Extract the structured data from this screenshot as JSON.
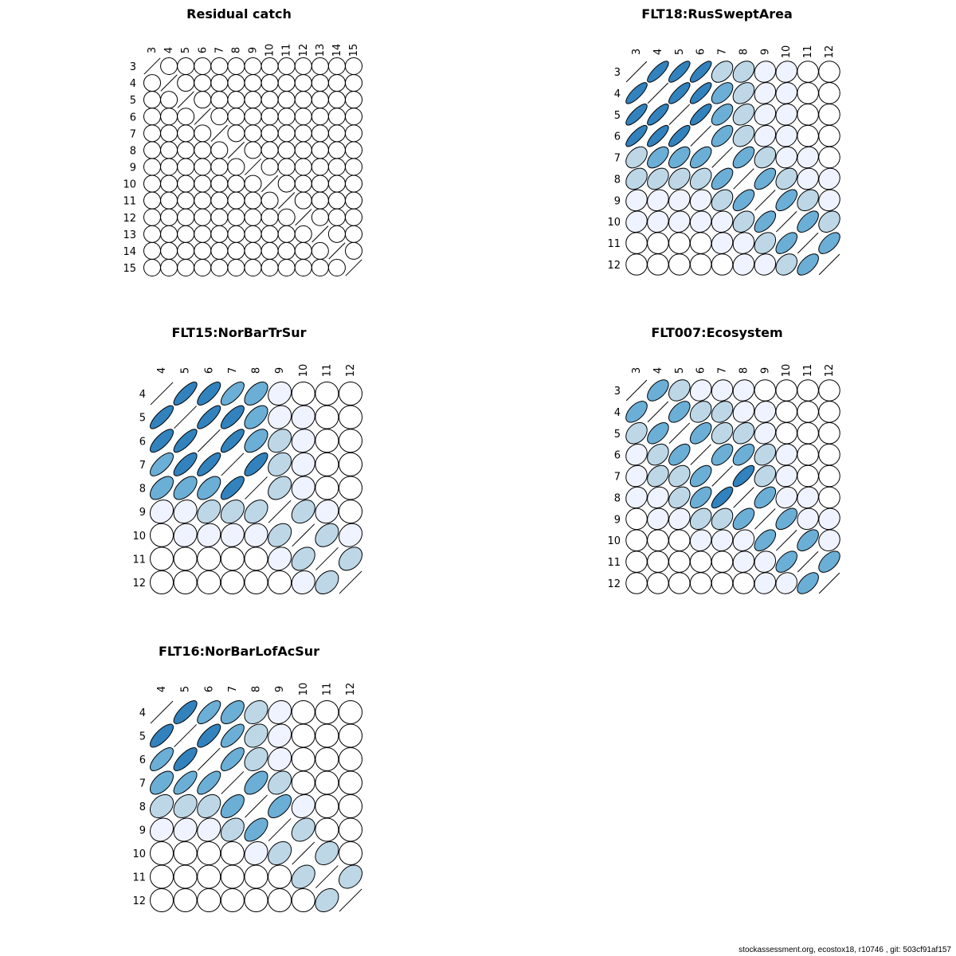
{
  "footer": "stockassessment.org, ecostox18, r10746 , git: 503cf91af157",
  "colors": {
    "outline": "#000000",
    "fill_scale": [
      "#ffffff",
      "#eff3ff",
      "#bdd7e7",
      "#6baed6",
      "#3182bd"
    ]
  },
  "chart_data": [
    {
      "type": "heatmap",
      "title": "Residual catch",
      "labels": [
        "3",
        "4",
        "5",
        "6",
        "7",
        "8",
        "9",
        "10",
        "11",
        "12",
        "13",
        "14",
        "15"
      ],
      "matrix": [
        [
          1,
          0,
          0,
          0,
          0,
          0,
          0,
          0,
          0,
          0,
          0,
          0,
          0
        ],
        [
          0,
          1,
          0,
          0,
          0,
          0,
          0,
          0,
          0,
          0,
          0,
          0,
          0
        ],
        [
          0,
          0,
          1,
          0,
          0,
          0,
          0,
          0,
          0,
          0,
          0,
          0,
          0
        ],
        [
          0,
          0,
          0,
          1,
          0,
          0,
          0,
          0,
          0,
          0,
          0,
          0,
          0
        ],
        [
          0,
          0,
          0,
          0,
          1,
          0,
          0,
          0,
          0,
          0,
          0,
          0,
          0
        ],
        [
          0,
          0,
          0,
          0,
          0,
          1,
          0,
          0,
          0,
          0,
          0,
          0,
          0
        ],
        [
          0,
          0,
          0,
          0,
          0,
          0,
          1,
          0,
          0,
          0,
          0,
          0,
          0
        ],
        [
          0,
          0,
          0,
          0,
          0,
          0,
          0,
          1,
          0,
          0,
          0,
          0,
          0
        ],
        [
          0,
          0,
          0,
          0,
          0,
          0,
          0,
          0,
          1,
          0,
          0,
          0,
          0
        ],
        [
          0,
          0,
          0,
          0,
          0,
          0,
          0,
          0,
          0,
          1,
          0,
          0,
          0
        ],
        [
          0,
          0,
          0,
          0,
          0,
          0,
          0,
          0,
          0,
          0,
          1,
          0,
          0
        ],
        [
          0,
          0,
          0,
          0,
          0,
          0,
          0,
          0,
          0,
          0,
          0,
          1,
          0
        ],
        [
          0,
          0,
          0,
          0,
          0,
          0,
          0,
          0,
          0,
          0,
          0,
          0,
          1
        ]
      ]
    },
    {
      "type": "heatmap",
      "title": "FLT18:RusSweptArea",
      "labels": [
        "3",
        "4",
        "5",
        "6",
        "7",
        "8",
        "9",
        "10",
        "11",
        "12"
      ],
      "matrix": [
        [
          1,
          0.8,
          0.8,
          0.8,
          0.4,
          0.3,
          0.1,
          0.1,
          0,
          0
        ],
        [
          0.8,
          1,
          0.8,
          0.8,
          0.55,
          0.35,
          0.15,
          0.1,
          0,
          0
        ],
        [
          0.8,
          0.8,
          1,
          0.8,
          0.55,
          0.35,
          0.15,
          0.1,
          0,
          0
        ],
        [
          0.8,
          0.8,
          0.8,
          1,
          0.6,
          0.35,
          0.15,
          0.1,
          0,
          0
        ],
        [
          0.4,
          0.55,
          0.55,
          0.6,
          1,
          0.6,
          0.3,
          0.1,
          0.1,
          0
        ],
        [
          0.3,
          0.35,
          0.35,
          0.35,
          0.6,
          1,
          0.6,
          0.3,
          0.1,
          0.1
        ],
        [
          0.1,
          0.15,
          0.15,
          0.15,
          0.3,
          0.6,
          1,
          0.6,
          0.3,
          0.1
        ],
        [
          0.1,
          0.1,
          0.1,
          0.1,
          0.1,
          0.3,
          0.6,
          1,
          0.6,
          0.3
        ],
        [
          0,
          0,
          0,
          0,
          0.1,
          0.1,
          0.3,
          0.6,
          1,
          0.6
        ],
        [
          0,
          0,
          0,
          0,
          0,
          0.1,
          0.1,
          0.3,
          0.6,
          1
        ]
      ]
    },
    {
      "type": "heatmap",
      "title": "FLT15:NorBarTrSur",
      "labels": [
        "4",
        "5",
        "6",
        "7",
        "8",
        "9",
        "10",
        "11",
        "12"
      ],
      "matrix": [
        [
          1,
          0.8,
          0.75,
          0.7,
          0.55,
          0.15,
          0,
          0,
          0
        ],
        [
          0.8,
          1,
          0.8,
          0.75,
          0.55,
          0.15,
          0.1,
          0,
          0
        ],
        [
          0.75,
          0.8,
          1,
          0.8,
          0.55,
          0.3,
          0.1,
          0,
          0
        ],
        [
          0.7,
          0.75,
          0.8,
          1,
          0.75,
          0.3,
          0.1,
          0,
          0
        ],
        [
          0.55,
          0.55,
          0.55,
          0.75,
          1,
          0.35,
          0.1,
          0,
          0
        ],
        [
          0.15,
          0.15,
          0.3,
          0.3,
          0.35,
          1,
          0.3,
          0.1,
          0
        ],
        [
          0,
          0.1,
          0.1,
          0.1,
          0.1,
          0.3,
          1,
          0.35,
          0.15
        ],
        [
          0,
          0,
          0,
          0,
          0,
          0.15,
          0.35,
          1,
          0.35
        ],
        [
          0,
          0,
          0,
          0,
          0,
          0,
          0.1,
          0.35,
          1
        ]
      ]
    },
    {
      "type": "heatmap",
      "title": "FLT007:Ecosystem",
      "labels": [
        "3",
        "4",
        "5",
        "6",
        "7",
        "8",
        "9",
        "10",
        "11",
        "12"
      ],
      "matrix": [
        [
          1,
          0.55,
          0.3,
          0.15,
          0.1,
          0.1,
          0,
          0,
          0,
          0
        ],
        [
          0.55,
          1,
          0.55,
          0.3,
          0.3,
          0.15,
          0.1,
          0,
          0,
          0
        ],
        [
          0.3,
          0.55,
          1,
          0.55,
          0.3,
          0.3,
          0.15,
          0,
          0,
          0
        ],
        [
          0.15,
          0.3,
          0.55,
          1,
          0.55,
          0.55,
          0.3,
          0.1,
          0,
          0
        ],
        [
          0.1,
          0.3,
          0.3,
          0.55,
          1,
          0.75,
          0.3,
          0.1,
          0,
          0
        ],
        [
          0.1,
          0.15,
          0.3,
          0.55,
          0.75,
          1,
          0.55,
          0.15,
          0.1,
          0
        ],
        [
          0,
          0.1,
          0.15,
          0.3,
          0.3,
          0.55,
          1,
          0.55,
          0.1,
          0.1
        ],
        [
          0,
          0,
          0,
          0.1,
          0.1,
          0.15,
          0.55,
          1,
          0.55,
          0.1
        ],
        [
          0,
          0,
          0,
          0,
          0,
          0.1,
          0.1,
          0.55,
          1,
          0.55
        ],
        [
          0,
          0,
          0,
          0,
          0,
          0,
          0.1,
          0.1,
          0.55,
          1
        ]
      ]
    },
    {
      "type": "heatmap",
      "title": "FLT16:NorBarLofAcSur",
      "labels": [
        "4",
        "5",
        "6",
        "7",
        "8",
        "9",
        "10",
        "11",
        "12"
      ],
      "matrix": [
        [
          1,
          0.75,
          0.7,
          0.55,
          0.3,
          0.15,
          0,
          0,
          0
        ],
        [
          0.75,
          1,
          0.75,
          0.7,
          0.3,
          0.15,
          0,
          0,
          0
        ],
        [
          0.7,
          0.75,
          1,
          0.7,
          0.3,
          0.15,
          0,
          0,
          0
        ],
        [
          0.55,
          0.7,
          0.7,
          1,
          0.55,
          0.3,
          0,
          0,
          0
        ],
        [
          0.3,
          0.3,
          0.3,
          0.55,
          1,
          0.55,
          0.15,
          0,
          0
        ],
        [
          0.15,
          0.15,
          0.15,
          0.3,
          0.55,
          1,
          0.3,
          0,
          0
        ],
        [
          0,
          0,
          0,
          0,
          0.15,
          0.3,
          1,
          0.3,
          0
        ],
        [
          0,
          0,
          0,
          0,
          0,
          0,
          0.3,
          1,
          0.3
        ],
        [
          0,
          0,
          0,
          0,
          0,
          0,
          0,
          0.3,
          1
        ]
      ]
    }
  ]
}
